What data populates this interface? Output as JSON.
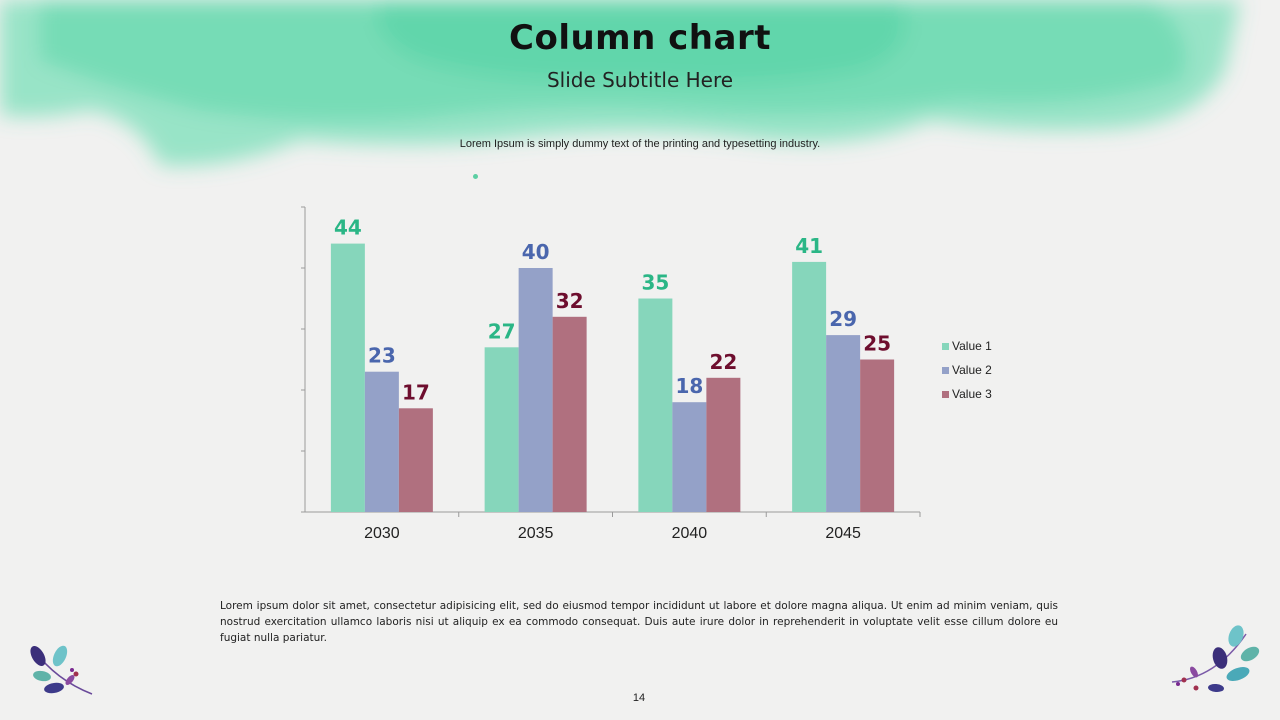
{
  "slide": {
    "title": "Column chart",
    "subtitle": "Slide Subtitle Here",
    "intro": "Lorem Ipsum is simply dummy text of the printing and typesetting industry.",
    "body": "Lorem ipsum dolor sit amet, consectetur adipisicing elit, sed do eiusmod tempor incididunt ut labore et dolore magna aliqua. Ut enim ad minim veniam, quis nostrud exercitation ullamco laboris nisi ut aliquip ex ea commodo consequat. Duis aute irure dolor in reprehenderit in voluptate velit esse cillum dolore eu fugiat nulla pariatur.",
    "page_number": "14"
  },
  "colors": {
    "accent_wash": "#3fd39a",
    "value1_bar": "#86d6bb",
    "value2_bar": "#94a1c8",
    "value3_bar": "#b0707f",
    "value1_label": "#2bb686",
    "value2_label": "#4a66ad",
    "value3_label": "#6e0e2e"
  },
  "chart_data": {
    "type": "bar",
    "categories": [
      "2030",
      "2035",
      "2040",
      "2045"
    ],
    "series": [
      {
        "name": "Value 1",
        "values": [
          44,
          27,
          35,
          41
        ]
      },
      {
        "name": "Value 2",
        "values": [
          23,
          40,
          18,
          29
        ]
      },
      {
        "name": "Value 3",
        "values": [
          17,
          32,
          22,
          25
        ]
      }
    ],
    "ylim": [
      0,
      50
    ],
    "y_ticks": [
      0,
      10,
      20,
      30,
      40,
      50
    ],
    "y_tick_labels_shown": false,
    "grid": false,
    "data_labels": true,
    "legend": "right"
  }
}
